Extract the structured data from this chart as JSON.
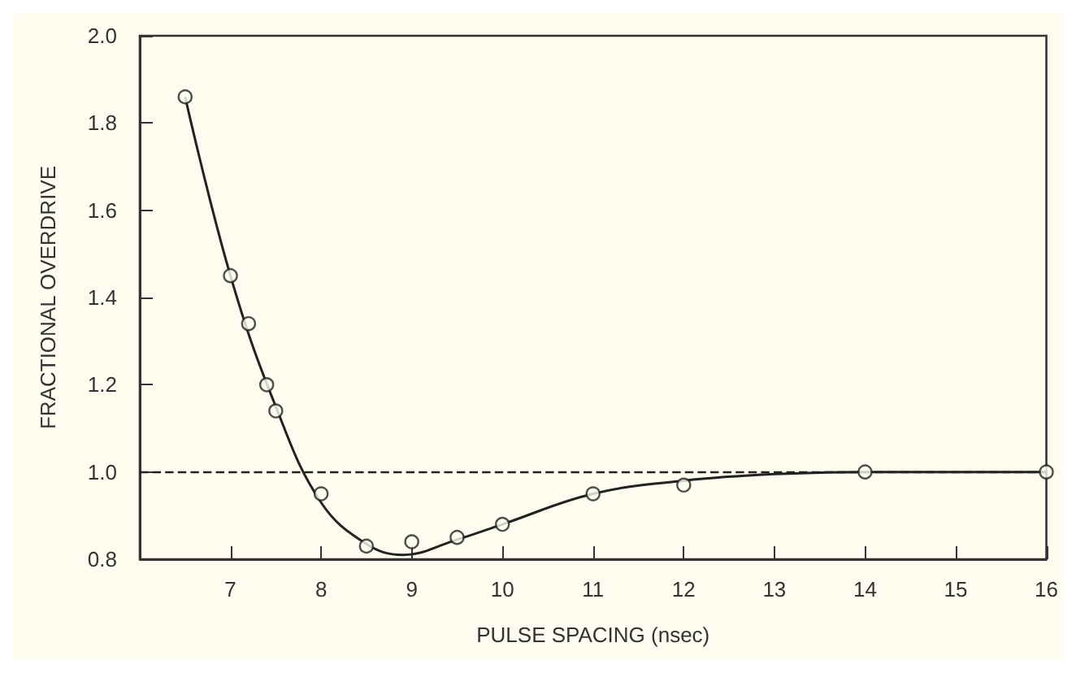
{
  "chart_data": {
    "type": "scatter",
    "xlabel": "PULSE SPACING (nsec)",
    "ylabel": "FRACTIONAL OVERDRIVE",
    "xlim": [
      6,
      16
    ],
    "xticks": [
      7,
      8,
      9,
      10,
      11,
      12,
      13,
      14,
      15,
      16
    ],
    "ylim": [
      0.8,
      2.0
    ],
    "yticks": [
      {
        "value": 0.8,
        "label": "0.8"
      },
      {
        "value": 1.0,
        "label": "1.0"
      },
      {
        "value": 1.2,
        "label": "1.2"
      },
      {
        "value": 1.4,
        "label": "1.4"
      },
      {
        "value": 1.6,
        "label": "1.6"
      },
      {
        "value": 1.8,
        "label": "1.8"
      },
      {
        "value": 2.0,
        "label": "2.0"
      }
    ],
    "grid": false,
    "series": [
      {
        "type": "scatter",
        "marker": "circle",
        "color": "#222222",
        "x": [
          6.5,
          7.0,
          7.2,
          7.4,
          7.5,
          8.0,
          8.5,
          9.0,
          9.5,
          10.0,
          11,
          12,
          14,
          16
        ],
        "values": [
          1.86,
          1.45,
          1.34,
          1.2,
          1.14,
          0.95,
          0.83,
          0.84,
          0.85,
          0.88,
          0.95,
          0.97,
          1.0,
          1.0
        ]
      },
      {
        "type": "line",
        "marker": "none",
        "line_style": "solid",
        "color": "#222222",
        "x": [
          6.5,
          7.0,
          7.5,
          8.0,
          8.5,
          8.9,
          9.5,
          10.0,
          11,
          12,
          13,
          14,
          16
        ],
        "values": [
          1.86,
          1.45,
          1.15,
          0.93,
          0.835,
          0.81,
          0.845,
          0.88,
          0.95,
          0.98,
          0.995,
          1.0,
          1.0
        ]
      }
    ],
    "ref_lines": [
      {
        "axis": "y",
        "value": 1.0,
        "label": null,
        "color": "#222222",
        "line_style": "dashed"
      }
    ]
  }
}
